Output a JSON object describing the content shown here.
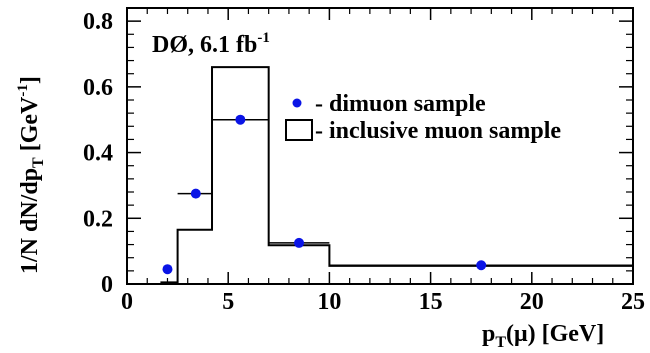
{
  "chart_data": {
    "type": "scatter",
    "annotation": {
      "main": "DØ, 6.1 fb",
      "sup": "-1"
    },
    "xlabel": {
      "main": "p",
      "sub": "T",
      "tail": "(μ) [GeV]"
    },
    "ylabel": {
      "main": "1/N dN/dp",
      "sub": "T",
      "unit": " [GeV",
      "unit_sup": "-1",
      "unit_close": "]"
    },
    "xlim": [
      0,
      25
    ],
    "ylim": [
      0,
      0.84
    ],
    "xticks": [
      0,
      5,
      10,
      15,
      20,
      25
    ],
    "xtick_labels": [
      "0",
      "5",
      "10",
      "15",
      "20",
      "25"
    ],
    "yticks": [
      0,
      0.2,
      0.4,
      0.6,
      0.8
    ],
    "ytick_labels": [
      "0",
      "0.2",
      "0.4",
      "0.6",
      "0.8"
    ],
    "colors": {
      "dimuon": "#0a14e6",
      "hist": "#000000"
    },
    "series": [
      {
        "name": "- dimuon sample",
        "type": "scatter",
        "points": [
          {
            "x": 2.0,
            "y": 0.045,
            "xerr": [
              2.0,
              2.0
            ]
          },
          {
            "x": 3.4,
            "y": 0.275,
            "xerr": [
              2.5,
              4.2
            ]
          },
          {
            "x": 5.6,
            "y": 0.5,
            "xerr": [
              4.2,
              7.0
            ]
          },
          {
            "x": 8.5,
            "y": 0.125,
            "xerr": [
              7.0,
              10.0
            ]
          },
          {
            "x": 17.5,
            "y": 0.057,
            "xerr": [
              10.0,
              25.0
            ]
          }
        ]
      },
      {
        "name": "- inclusive muon sample",
        "type": "histogram",
        "bins": [
          {
            "lo": 1.7,
            "hi": 2.5,
            "y": 0.005
          },
          {
            "lo": 2.5,
            "hi": 4.2,
            "y": 0.165
          },
          {
            "lo": 4.2,
            "hi": 7.0,
            "y": 0.66
          },
          {
            "lo": 7.0,
            "hi": 10.0,
            "y": 0.118
          },
          {
            "lo": 10.0,
            "hi": 25.0,
            "y": 0.055
          }
        ]
      }
    ],
    "legend_position": "top-right"
  }
}
